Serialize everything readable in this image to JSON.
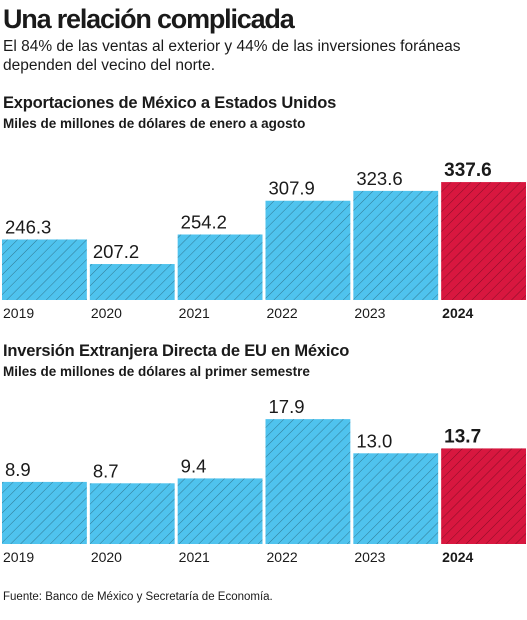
{
  "header": {
    "title": "Una relación complicada",
    "subtitle": "El 84% de las ventas al exterior y  44% de las inversiones foráneas dependen del vecino del norte."
  },
  "colors": {
    "bar_fill": "#4FC3EE",
    "bar_highlight": "#D8173F",
    "text": "#1a1a1a"
  },
  "chart_data": [
    {
      "type": "bar",
      "title": "Exportaciones de México a Estados Unidos",
      "subtitle": "Miles de millones de dólares de enero a agosto",
      "categories": [
        "2019",
        "2020",
        "2021",
        "2022",
        "2023",
        "2024"
      ],
      "values": [
        246.3,
        207.2,
        254.2,
        307.9,
        323.6,
        337.6
      ],
      "value_labels": [
        "246.3",
        "207.2",
        "254.2",
        "307.9",
        "323.6",
        "337.6"
      ],
      "highlight_index": 5,
      "ylim": [
        150,
        360
      ],
      "grid": false
    },
    {
      "type": "bar",
      "title": "Inversión Extranjera Directa de EU en México",
      "subtitle": "Miles de millones de dólares al primer semestre",
      "categories": [
        "2019",
        "2020",
        "2021",
        "2022",
        "2023",
        "2024"
      ],
      "values": [
        8.9,
        8.7,
        9.4,
        17.9,
        13.0,
        13.7
      ],
      "value_labels": [
        "8.9",
        "8.7",
        "9.4",
        "17.9",
        "13.0",
        "13.7"
      ],
      "highlight_index": 5,
      "ylim": [
        0,
        21.5
      ],
      "grid": false
    }
  ],
  "footer": {
    "source": "Fuente: Banco de México y Secretaría de Economía."
  }
}
